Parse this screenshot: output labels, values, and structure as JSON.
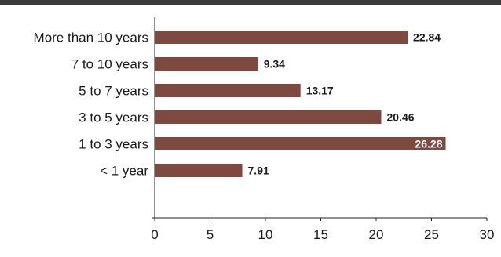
{
  "chart_data": {
    "type": "bar",
    "orientation": "horizontal",
    "categories": [
      "More than 10 years",
      "7 to 10 years",
      "5 to 7 years",
      "3 to 5 years",
      "1 to 3 years",
      "< 1 year"
    ],
    "values": [
      22.84,
      9.34,
      13.17,
      20.46,
      26.28,
      7.91
    ],
    "value_labels": [
      "22.84",
      "9.34",
      "13.17",
      "20.46",
      "26.28",
      "7.91"
    ],
    "xlim": [
      0,
      30
    ],
    "x_ticks": [
      0,
      5,
      10,
      15,
      20,
      25,
      30
    ],
    "x_tick_labels": [
      "0",
      "5",
      "10",
      "15",
      "20",
      "25",
      "30"
    ],
    "title": "",
    "xlabel": "",
    "ylabel": "",
    "grid": false,
    "legend": "none",
    "colors": {
      "bar": "#7e4a40",
      "top_rule": "#3a3a3a",
      "axis": "#222222",
      "label_dark": "#1a1a1a",
      "label_light": "#ffffff"
    }
  }
}
